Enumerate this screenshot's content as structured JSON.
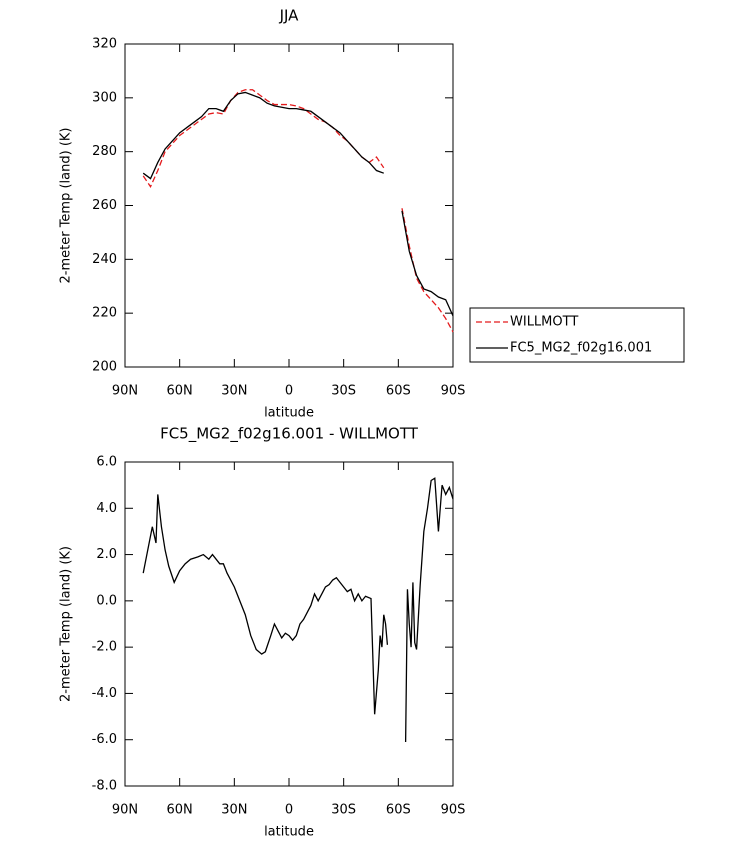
{
  "chart_data": [
    {
      "type": "line",
      "title": "JJA",
      "x_label": "latitude",
      "y_label": "2-meter Temp (land) (K)",
      "x": [
        80,
        76,
        72,
        68,
        64,
        60,
        56,
        52,
        48,
        44,
        40,
        36,
        32,
        28,
        24,
        20,
        16,
        12,
        8,
        4,
        0,
        -4,
        -8,
        -12,
        -16,
        -20,
        -24,
        -28,
        -32,
        -36,
        -40,
        -44,
        -48,
        -52,
        -56,
        -62,
        -66,
        -70,
        -74,
        -78,
        -82,
        -86,
        -90
      ],
      "series": [
        {
          "name": "WILLMOTT",
          "color": "#e41a1c",
          "linestyle": "dashed",
          "values": [
            271,
            267,
            273,
            280,
            283,
            286,
            288,
            290,
            292,
            294,
            294.5,
            294,
            299,
            302,
            303,
            303,
            301,
            299,
            297.5,
            297.5,
            297.5,
            297,
            296,
            294,
            292,
            291,
            289,
            286,
            284,
            281,
            278,
            276,
            278,
            274,
            null,
            259,
            245,
            233,
            228,
            225,
            222,
            218,
            213
          ]
        },
        {
          "name": "FC5_MG2_f02g16.001",
          "color": "#000000",
          "linestyle": "solid",
          "values": [
            272,
            270,
            276,
            281,
            284,
            287,
            289,
            291,
            293,
            296,
            296,
            295,
            299,
            301.5,
            302,
            301,
            300,
            298,
            297,
            296.5,
            296,
            296,
            295.5,
            295,
            293,
            291,
            289,
            287,
            284,
            281,
            278,
            276,
            273,
            272,
            null,
            258,
            243,
            234,
            229,
            228,
            226,
            225,
            219
          ]
        }
      ],
      "xlim": [
        90,
        -90
      ],
      "ylim": [
        200,
        320
      ],
      "xticks": [
        {
          "value": 90,
          "label": "90N"
        },
        {
          "value": 60,
          "label": "60N"
        },
        {
          "value": 30,
          "label": "30N"
        },
        0,
        {
          "value": -30,
          "label": "30S"
        },
        {
          "value": -60,
          "label": "60S"
        },
        {
          "value": -90,
          "label": "90S"
        }
      ],
      "yticks": [
        200,
        220,
        240,
        260,
        280,
        300,
        320
      ]
    },
    {
      "type": "line",
      "title": "FC5_MG2_f02g16.001 - WILLMOTT",
      "x_label": "latitude",
      "y_label": "2-meter Temp (land) (K)",
      "x": [
        80,
        77,
        75,
        73,
        72,
        70,
        68,
        66,
        63,
        60,
        57,
        54,
        50,
        47,
        44,
        42,
        40,
        38,
        36,
        34,
        30,
        27,
        24,
        21,
        18,
        15,
        13,
        10,
        8,
        6,
        4,
        2,
        0,
        -2,
        -4,
        -6,
        -8,
        -10,
        -12,
        -14,
        -16,
        -18,
        -20,
        -22,
        -24,
        -26,
        -28,
        -30,
        -32,
        -34,
        -36,
        -38,
        -40,
        -42,
        -45,
        -47,
        -49,
        -50,
        -51,
        -52,
        -53,
        -54,
        -58,
        -64,
        -65,
        -66,
        -67,
        -68,
        -69,
        -70,
        -72,
        -74,
        -76,
        -78,
        -80,
        -82,
        -84,
        -86,
        -88,
        -90
      ],
      "series": [
        {
          "color": "#000000",
          "linestyle": "solid",
          "values": [
            1.2,
            2.4,
            3.2,
            2.5,
            4.6,
            3.2,
            2.2,
            1.5,
            0.8,
            1.3,
            1.6,
            1.8,
            1.9,
            2.0,
            1.8,
            2.0,
            1.8,
            1.6,
            1.6,
            1.2,
            0.6,
            0.0,
            -0.6,
            -1.5,
            -2.1,
            -2.3,
            -2.2,
            -1.5,
            -1.0,
            -1.3,
            -1.6,
            -1.4,
            -1.5,
            -1.7,
            -1.5,
            -1.0,
            -0.8,
            -0.5,
            -0.2,
            0.3,
            0.0,
            0.3,
            0.6,
            0.7,
            0.9,
            1.0,
            0.8,
            0.6,
            0.4,
            0.5,
            0.0,
            0.3,
            0.0,
            0.2,
            0.1,
            -4.9,
            -3.0,
            -1.5,
            -2.0,
            -0.6,
            -1.0,
            -1.9,
            null,
            -6.1,
            0.5,
            -1.0,
            -2.0,
            0.8,
            -1.8,
            -2.1,
            0.7,
            3.0,
            4.0,
            5.2,
            5.3,
            3.0,
            5.0,
            4.6,
            4.9,
            4.4
          ]
        }
      ],
      "xlim": [
        90,
        -90
      ],
      "ylim": [
        -8,
        6
      ],
      "xticks": [
        {
          "value": 90,
          "label": "90N"
        },
        {
          "value": 60,
          "label": "60N"
        },
        {
          "value": 30,
          "label": "30N"
        },
        0,
        {
          "value": -30,
          "label": "30S"
        },
        {
          "value": -60,
          "label": "60S"
        },
        {
          "value": -90,
          "label": "90S"
        }
      ],
      "yticks": [
        {
          "value": -8,
          "label": "-8.0"
        },
        {
          "value": -6,
          "label": "-6.0"
        },
        {
          "value": -4,
          "label": "-4.0"
        },
        {
          "value": -2,
          "label": "-2.0"
        },
        {
          "value": 0,
          "label": "0.0"
        },
        {
          "value": 2,
          "label": "2.0"
        },
        {
          "value": 4,
          "label": "4.0"
        },
        {
          "value": 6,
          "label": "6.0"
        }
      ]
    }
  ]
}
